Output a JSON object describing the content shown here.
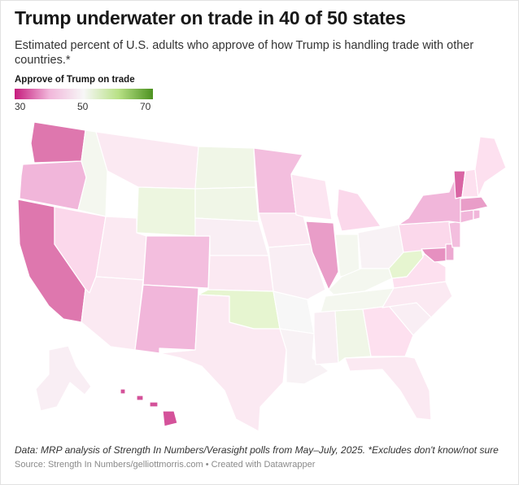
{
  "title": "Trump underwater on trade in 40 of 50 states",
  "subtitle": "Estimated percent of U.S. adults who approve of how Trump is handling trade with other countries.*",
  "legend": {
    "title": "Approve of Trump on trade",
    "min_label": "30",
    "mid_label": "50",
    "max_label": "70",
    "min": 30,
    "mid": 50,
    "max": 70,
    "colors": [
      "#c51b7d",
      "#f7f7f7",
      "#4d9221"
    ]
  },
  "notes": "Data: MRP analysis of Strength In Numbers/Verasight polls from May–July, 2025. *Excludes don't know/not sure",
  "source": "Source: Strength In Numbers/gelliottmorris.com • Created with Datawrapper",
  "states": [
    {
      "id": "WA",
      "value": 35
    },
    {
      "id": "OR",
      "value": 40
    },
    {
      "id": "CA",
      "value": 35
    },
    {
      "id": "NV",
      "value": 44
    },
    {
      "id": "ID",
      "value": 51
    },
    {
      "id": "MT",
      "value": 47
    },
    {
      "id": "WY",
      "value": 53
    },
    {
      "id": "UT",
      "value": 47
    },
    {
      "id": "AZ",
      "value": 47
    },
    {
      "id": "CO",
      "value": 41
    },
    {
      "id": "NM",
      "value": 40
    },
    {
      "id": "ND",
      "value": 52
    },
    {
      "id": "SD",
      "value": 52
    },
    {
      "id": "NE",
      "value": 48
    },
    {
      "id": "KS",
      "value": 47
    },
    {
      "id": "OK",
      "value": 55
    },
    {
      "id": "TX",
      "value": 47
    },
    {
      "id": "MN",
      "value": 41
    },
    {
      "id": "IA",
      "value": 47
    },
    {
      "id": "MO",
      "value": 48
    },
    {
      "id": "AR",
      "value": 50
    },
    {
      "id": "LA",
      "value": 49
    },
    {
      "id": "WI",
      "value": 46
    },
    {
      "id": "IL",
      "value": 38
    },
    {
      "id": "MS",
      "value": 48
    },
    {
      "id": "MI",
      "value": 44
    },
    {
      "id": "IN",
      "value": 51
    },
    {
      "id": "KY",
      "value": 51
    },
    {
      "id": "TN",
      "value": 51
    },
    {
      "id": "AL",
      "value": 52
    },
    {
      "id": "OH",
      "value": 49
    },
    {
      "id": "GA",
      "value": 45
    },
    {
      "id": "FL",
      "value": 47
    },
    {
      "id": "SC",
      "value": 48
    },
    {
      "id": "NC",
      "value": 47
    },
    {
      "id": "VA",
      "value": 45
    },
    {
      "id": "WV",
      "value": 55
    },
    {
      "id": "PA",
      "value": 44
    },
    {
      "id": "NY",
      "value": 40
    },
    {
      "id": "VT",
      "value": 34
    },
    {
      "id": "NH",
      "value": 45
    },
    {
      "id": "ME",
      "value": 45
    },
    {
      "id": "MA",
      "value": 38
    },
    {
      "id": "RI",
      "value": 40
    },
    {
      "id": "CT",
      "value": 40
    },
    {
      "id": "NJ",
      "value": 41
    },
    {
      "id": "DE",
      "value": 39
    },
    {
      "id": "MD",
      "value": 37
    },
    {
      "id": "AK",
      "value": 48
    },
    {
      "id": "HI",
      "value": 33
    }
  ]
}
